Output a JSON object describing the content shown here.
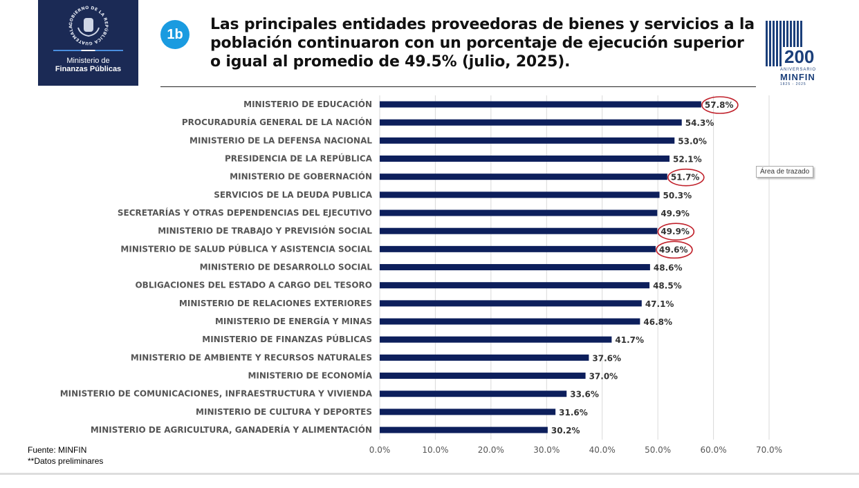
{
  "header": {
    "logo_line1": "Ministerio de",
    "logo_line2": "Finanzas Públicas",
    "seal_text": "GOBIERNO DE LA REPÚBLICA GUATEMALA",
    "badge": "1b",
    "title": "Las principales entidades proveedoras de bienes y servicios a la población continuaron con un porcentaje de ejecución superior o igual al promedio de 49.5% (julio, 2025).",
    "anniversary": {
      "number": "200",
      "label": "ANIVERSARIO",
      "brand": "MINFIN",
      "years": "1825 - 2025"
    }
  },
  "tooltip": "Área de trazado",
  "footer": {
    "source": "Fuente: MINFIN",
    "note": "**Datos preliminares"
  },
  "colors": {
    "bar": "#0d1f5c",
    "highlight": "#c0202a",
    "badge": "#1a9be0"
  },
  "chart_data": {
    "type": "bar",
    "orientation": "horizontal",
    "categories": [
      "MINISTERIO DE EDUCACIÓN",
      "PROCURADURÍA GENERAL DE LA NACIÓN",
      "MINISTERIO DE LA DEFENSA NACIONAL",
      "PRESIDENCIA DE LA REPÚBLICA",
      "MINISTERIO DE GOBERNACIÓN",
      "SERVICIOS DE LA DEUDA PUBLICA",
      "SECRETARÍAS Y OTRAS DEPENDENCIAS DEL EJECUTIVO",
      "MINISTERIO DE TRABAJO Y PREVISIÓN SOCIAL",
      "MINISTERIO DE SALUD PÚBLICA Y ASISTENCIA SOCIAL",
      "MINISTERIO DE DESARROLLO SOCIAL",
      "OBLIGACIONES DEL ESTADO A CARGO DEL TESORO",
      "MINISTERIO DE RELACIONES EXTERIORES",
      "MINISTERIO DE ENERGÍA Y MINAS",
      "MINISTERIO DE FINANZAS PÚBLICAS",
      "MINISTERIO DE AMBIENTE Y RECURSOS NATURALES",
      "MINISTERIO DE ECONOMÍA",
      "MINISTERIO DE  COMUNICACIONES, INFRAESTRUCTURA Y VIVIENDA",
      "MINISTERIO DE CULTURA Y DEPORTES",
      "MINISTERIO DE AGRICULTURA, GANADERÍA Y ALIMENTACIÓN"
    ],
    "values": [
      57.8,
      54.3,
      53.0,
      52.1,
      51.7,
      50.3,
      49.9,
      49.9,
      49.6,
      48.6,
      48.5,
      47.1,
      46.8,
      41.7,
      37.6,
      37.0,
      33.6,
      31.6,
      30.2
    ],
    "data_labels": [
      "57.8%",
      "54.3%",
      "53.0%",
      "52.1%",
      "51.7%",
      "50.3%",
      "49.9%",
      "49.9%",
      "49.6%",
      "48.6%",
      "48.5%",
      "47.1%",
      "46.8%",
      "41.7%",
      "37.6%",
      "37.0%",
      "33.6%",
      "31.6%",
      "30.2%"
    ],
    "highlighted": [
      0,
      4,
      7,
      8
    ],
    "xticks": [
      "0.0%",
      "10.0%",
      "20.0%",
      "30.0%",
      "40.0%",
      "50.0%",
      "60.0%",
      "70.0%"
    ],
    "xlim": [
      0,
      70
    ],
    "grid": true,
    "unit": "%"
  }
}
